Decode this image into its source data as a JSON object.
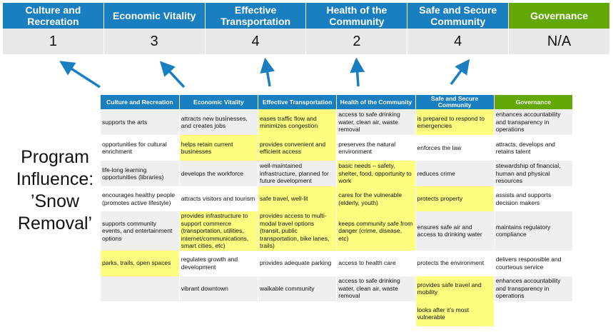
{
  "categories": [
    {
      "name": "Culture and Recreation",
      "score": "1"
    },
    {
      "name": "Economic Vitality",
      "score": "3"
    },
    {
      "name": "Effective Transportation",
      "score": "4"
    },
    {
      "name": "Health of the Community",
      "score": "2"
    },
    {
      "name": "Safe and Secure Community",
      "score": "4"
    },
    {
      "name": "Governance",
      "score": "N/A"
    }
  ],
  "program_label": "Program Influence: ’Snow Removal’",
  "colors": {
    "header_blue": "#1a7fc1",
    "governance_green": "#62a807",
    "highlight_yellow": "#fdfd80",
    "arrow": "#1a7fc1"
  },
  "table": {
    "headers": [
      "Culture and Recreation",
      "Economic Vitality",
      "Effective Transportation",
      "Health of the Community",
      "Safe and Secure Community",
      "Governance"
    ],
    "rows": [
      [
        {
          "t": "supports the arts"
        },
        {
          "t": "attracts new businesses, and creates jobs"
        },
        {
          "t": "eases traffic flow and minimizes congestion",
          "h": true
        },
        {
          "t": "access to safe drinking water, clean air, waste removal"
        },
        {
          "t": "is prepared to respond to emergencies",
          "h": true
        },
        {
          "t": "enhances accountability and transparency in operations"
        }
      ],
      [
        {
          "t": "opportunities for cultural enrichment"
        },
        {
          "t": "helps retain current businesses",
          "h": true
        },
        {
          "t": "provides convenient and efficient access",
          "h": true
        },
        {
          "t": "preserves the natural environment"
        },
        {
          "t": "enforces the law"
        },
        {
          "t": "attracts, develops and retains talent"
        }
      ],
      [
        {
          "t": "life-long learning opportunities (libraries)"
        },
        {
          "t": "develops the workforce"
        },
        {
          "t": "well-maintained infrastructure, planned for future development"
        },
        {
          "t": "basic needs – safety, shelter, food, opportunity to work",
          "h": true
        },
        {
          "t": "reduces crime"
        },
        {
          "t": "stewardship of financial, human and physical resources"
        }
      ],
      [
        {
          "t": "encourages healthy people (promotes active lifestyle)"
        },
        {
          "t": "attracts visitors and tourism"
        },
        {
          "t": "safe travel, well-lit",
          "h": true
        },
        {
          "t": "cares for the vulnerable (elderly, youth)",
          "h": true
        },
        {
          "t": "protects property",
          "h": true
        },
        {
          "t": "assists and supports decision makers"
        }
      ],
      [
        {
          "t": "supports community events, and entertainment options"
        },
        {
          "t": "provides infrastructure to support commerce (transportation, utilities, internet/communications, smart cities, etc)",
          "h": true
        },
        {
          "t": "provides access to multi-modal travel options (transit, public transportation, bike lanes, trails)",
          "h": true
        },
        {
          "t": "keeps community safe from danger (crime, disease, etc)",
          "h": true
        },
        {
          "t": "ensures safe air and access to drinking water"
        },
        {
          "t": "maintains regulatory compliance"
        }
      ],
      [
        {
          "t": "parks, trails, open spaces",
          "h": true
        },
        {
          "t": "regulates growth and development"
        },
        {
          "t": "provides adequate parking"
        },
        {
          "t": "access to health care"
        },
        {
          "t": "protects the environment"
        },
        {
          "t": "delivers responsible and courteous service"
        }
      ],
      [
        {
          "t": ""
        },
        {
          "t": "vibrant downtown"
        },
        {
          "t": "walkable community"
        },
        {
          "t": "access to safe drinking water, clean air, waste removal"
        },
        {
          "t": "provides safe travel and mobility",
          "h": true
        },
        {
          "t": "enhances accountability and transparency in operations"
        }
      ],
      [
        {
          "t": ""
        },
        {
          "t": ""
        },
        {
          "t": ""
        },
        {
          "t": ""
        },
        {
          "t": "looks after it’s most vulnerable",
          "h": true
        },
        {
          "t": ""
        }
      ]
    ]
  }
}
